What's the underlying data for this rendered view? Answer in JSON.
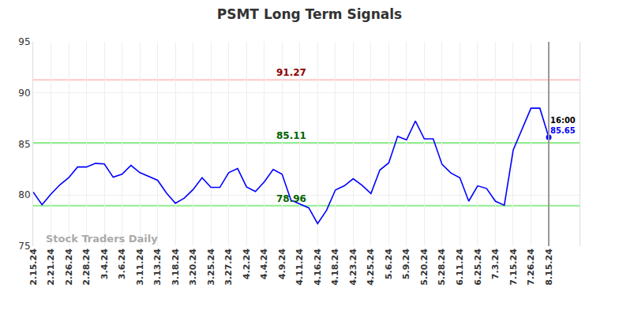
{
  "chart_data": {
    "type": "line",
    "title": "PSMT Long Term Signals",
    "categories": [
      "2.15.24",
      null,
      "2.21.24",
      null,
      "2.26.24",
      null,
      "2.28.24",
      null,
      "3.4.24",
      null,
      "3.6.24",
      null,
      "3.11.24",
      null,
      "3.13.24",
      null,
      "3.18.24",
      null,
      "3.20.24",
      null,
      "3.25.24",
      null,
      "3.27.24",
      null,
      "4.2.24",
      null,
      "4.4.24",
      null,
      "4.9.24",
      null,
      "4.11.24",
      null,
      "4.16.24",
      null,
      "4.18.24",
      null,
      "4.23.24",
      null,
      "4.25.24",
      null,
      "5.6.24",
      null,
      "5.9.24",
      null,
      "5.20.24",
      null,
      "5.28.24",
      null,
      "6.11.24",
      null,
      "6.25.24",
      null,
      "7.3.24",
      null,
      "7.15.24",
      null,
      "7.26.24",
      null,
      "8.15.24"
    ],
    "values": [
      80.3,
      79.05,
      80.1,
      81.0,
      81.7,
      82.75,
      82.75,
      83.1,
      83.05,
      81.75,
      82.05,
      82.9,
      82.2,
      81.8,
      81.45,
      80.2,
      79.2,
      79.7,
      80.55,
      81.7,
      80.75,
      80.75,
      82.2,
      82.6,
      80.8,
      80.35,
      81.3,
      82.5,
      82.05,
      79.5,
      79.1,
      78.75,
      77.2,
      78.5,
      80.5,
      80.9,
      81.6,
      80.95,
      80.15,
      82.45,
      83.15,
      85.75,
      85.4,
      87.25,
      85.5,
      85.5,
      83.0,
      82.15,
      81.7,
      79.4,
      80.9,
      80.65,
      79.4,
      79.0,
      84.4,
      86.5,
      88.5,
      88.5,
      85.65
    ],
    "color": "#0000ff",
    "ylim": [
      75,
      95
    ],
    "yticks": [
      75,
      80,
      85,
      90,
      95
    ],
    "grid": true,
    "levels": [
      {
        "value": 91.27,
        "color": "#ffc8c8",
        "label_color": "#8b0000"
      },
      {
        "value": 85.11,
        "color": "#90ee90",
        "label_color": "#006400"
      },
      {
        "value": 78.96,
        "color": "#90ee90",
        "label_color": "#006400"
      }
    ],
    "last_point": {
      "time_label": "16:00",
      "value": 85.65
    },
    "watermark": "Stock Traders Daily"
  }
}
